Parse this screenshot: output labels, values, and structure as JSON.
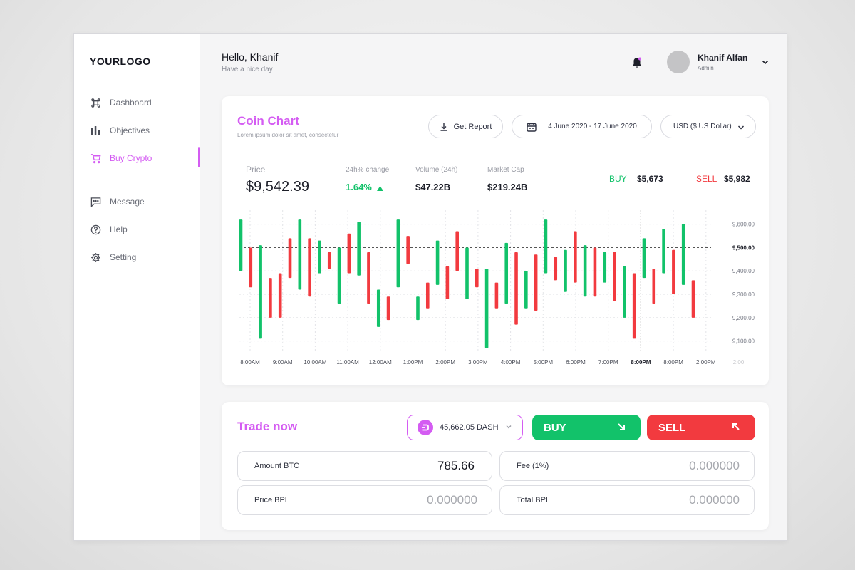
{
  "sidebar": {
    "logo": "YOURLOGO",
    "items": [
      {
        "label": "Dashboard",
        "icon": "command-icon"
      },
      {
        "label": "Objectives",
        "icon": "bar-chart-icon"
      },
      {
        "label": "Buy Crypto",
        "icon": "cart-icon",
        "active": true
      },
      {
        "label": "Message",
        "icon": "message-icon"
      },
      {
        "label": "Help",
        "icon": "help-icon"
      },
      {
        "label": "Setting",
        "icon": "gear-icon"
      }
    ]
  },
  "header": {
    "greeting": "Hello, Khanif",
    "subtitle": "Have a nice  day",
    "user_name": "Khanif Alfan",
    "user_role": "Admin"
  },
  "coin_chart": {
    "title": "Coin Chart",
    "subtitle": "Lorem ipsum dolor sit amet, consectetur",
    "report_button": "Get Report",
    "date_range": "4 June 2020 - 17 June 2020",
    "currency": "USD ($ US Dollar)",
    "stats": {
      "price_label": "Price",
      "price": "$9,542.39",
      "change_label": "24h% change",
      "change": "1.64%",
      "volume_label": "Volume (24h)",
      "volume": "$47.22B",
      "market_cap_label": "Market Cap",
      "market_cap": "$219.24B",
      "buy_label": "BUY",
      "buy_value": "$5,673",
      "sell_label": "SELL",
      "sell_value": "$5,982"
    }
  },
  "chart_data": {
    "type": "candlestick",
    "x_ticks": [
      "8:00AM",
      "9:00AM",
      "10:00AM",
      "11:00AM",
      "12:00AM",
      "1:00PM",
      "2:00PM",
      "3:00PM",
      "4:00PM",
      "5:00PM",
      "6:00PM",
      "7:00PM",
      "8:00PM",
      "8:00PM",
      "2:00PM",
      "2:00"
    ],
    "highlight_x_tick": "8:00PM",
    "y_ticks": [
      "9,600.00",
      "9,500.00",
      "9,400.00",
      "9,300.00",
      "9,200.00",
      "9,100.00"
    ],
    "highlight_y_tick": "9,500.00",
    "ylim": [
      9050,
      9660
    ],
    "reference_price": 9500,
    "colors": {
      "up": "#12c26a",
      "down": "#f23a3f"
    },
    "candles": [
      {
        "dir": "up",
        "low": 9400,
        "high": 9620
      },
      {
        "dir": "down",
        "low": 9330,
        "high": 9500
      },
      {
        "dir": "up",
        "low": 9110,
        "high": 9510
      },
      {
        "dir": "down",
        "low": 9200,
        "high": 9370
      },
      {
        "dir": "down",
        "low": 9200,
        "high": 9390
      },
      {
        "dir": "down",
        "low": 9370,
        "high": 9540
      },
      {
        "dir": "up",
        "low": 9320,
        "high": 9620
      },
      {
        "dir": "down",
        "low": 9290,
        "high": 9540
      },
      {
        "dir": "up",
        "low": 9390,
        "high": 9530
      },
      {
        "dir": "down",
        "low": 9410,
        "high": 9480
      },
      {
        "dir": "up",
        "low": 9260,
        "high": 9500
      },
      {
        "dir": "down",
        "low": 9390,
        "high": 9560
      },
      {
        "dir": "up",
        "low": 9380,
        "high": 9610
      },
      {
        "dir": "down",
        "low": 9260,
        "high": 9480
      },
      {
        "dir": "up",
        "low": 9160,
        "high": 9320
      },
      {
        "dir": "down",
        "low": 9190,
        "high": 9290
      },
      {
        "dir": "up",
        "low": 9330,
        "high": 9620
      },
      {
        "dir": "down",
        "low": 9430,
        "high": 9550
      },
      {
        "dir": "up",
        "low": 9190,
        "high": 9290
      },
      {
        "dir": "down",
        "low": 9240,
        "high": 9350
      },
      {
        "dir": "up",
        "low": 9340,
        "high": 9530
      },
      {
        "dir": "down",
        "low": 9280,
        "high": 9420
      },
      {
        "dir": "down",
        "low": 9400,
        "high": 9570
      },
      {
        "dir": "up",
        "low": 9280,
        "high": 9500
      },
      {
        "dir": "down",
        "low": 9330,
        "high": 9410
      },
      {
        "dir": "up",
        "low": 9070,
        "high": 9410
      },
      {
        "dir": "down",
        "low": 9240,
        "high": 9350
      },
      {
        "dir": "up",
        "low": 9260,
        "high": 9520
      },
      {
        "dir": "down",
        "low": 9170,
        "high": 9480
      },
      {
        "dir": "up",
        "low": 9240,
        "high": 9400
      },
      {
        "dir": "down",
        "low": 9230,
        "high": 9470
      },
      {
        "dir": "up",
        "low": 9390,
        "high": 9620
      },
      {
        "dir": "down",
        "low": 9360,
        "high": 9460
      },
      {
        "dir": "up",
        "low": 9310,
        "high": 9490
      },
      {
        "dir": "down",
        "low": 9350,
        "high": 9570
      },
      {
        "dir": "up",
        "low": 9290,
        "high": 9510
      },
      {
        "dir": "down",
        "low": 9290,
        "high": 9500
      },
      {
        "dir": "up",
        "low": 9350,
        "high": 9480
      },
      {
        "dir": "down",
        "low": 9270,
        "high": 9480
      },
      {
        "dir": "up",
        "low": 9200,
        "high": 9420
      },
      {
        "dir": "down",
        "low": 9110,
        "high": 9390
      },
      {
        "dir": "up",
        "low": 9370,
        "high": 9540
      },
      {
        "dir": "down",
        "low": 9260,
        "high": 9410
      },
      {
        "dir": "up",
        "low": 9390,
        "high": 9580
      },
      {
        "dir": "down",
        "low": 9300,
        "high": 9490
      },
      {
        "dir": "up",
        "low": 9340,
        "high": 9600
      },
      {
        "dir": "down",
        "low": 9200,
        "high": 9360
      }
    ]
  },
  "trade": {
    "title": "Trade now",
    "wallet": "45,662.05 DASH",
    "buy_button": "BUY",
    "sell_button": "SELL",
    "fields": {
      "amount_label": "Amount BTC",
      "amount_value": "785.66",
      "fee_label": "Fee (1%)",
      "fee_value": "0.000000",
      "price_label": "Price BPL",
      "price_value": "0.000000",
      "total_label": "Total BPL",
      "total_value": "0.000000"
    }
  },
  "colors": {
    "accent": "#d45cf2",
    "green": "#12c26a",
    "red": "#f23a3f"
  }
}
